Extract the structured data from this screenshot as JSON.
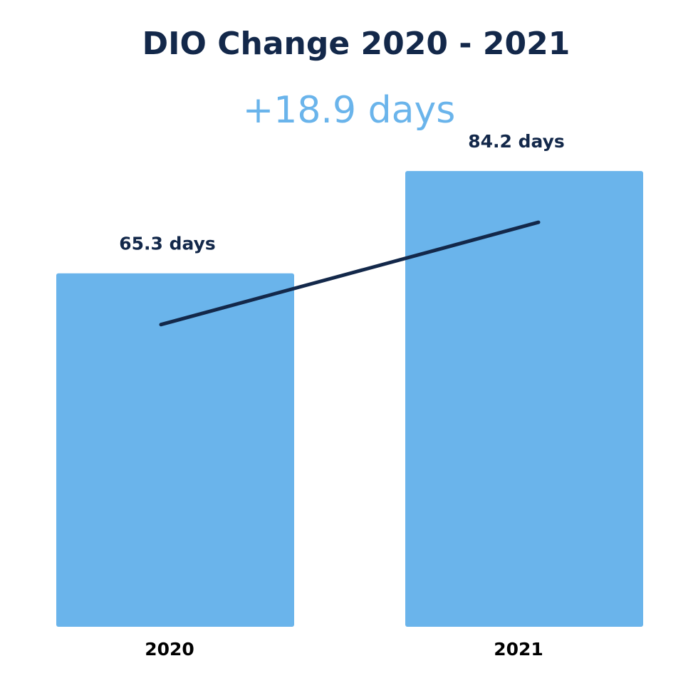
{
  "chart_data": {
    "type": "bar",
    "title": "DIO Change 2020 - 2021",
    "subtitle": "+18.9 days",
    "categories": [
      "2020",
      "2021"
    ],
    "values": [
      65.3,
      84.2
    ],
    "data_labels": [
      "65.3 days",
      "84.2 days"
    ],
    "xlabel": "",
    "ylabel": "",
    "ylim": [
      0,
      100
    ],
    "grid": false,
    "trend_line": true,
    "colors": {
      "bar": "#6AB4EB",
      "title": "#13284A",
      "subtitle": "#6AB4EB",
      "line": "#13284A",
      "label": "#13284A"
    }
  }
}
